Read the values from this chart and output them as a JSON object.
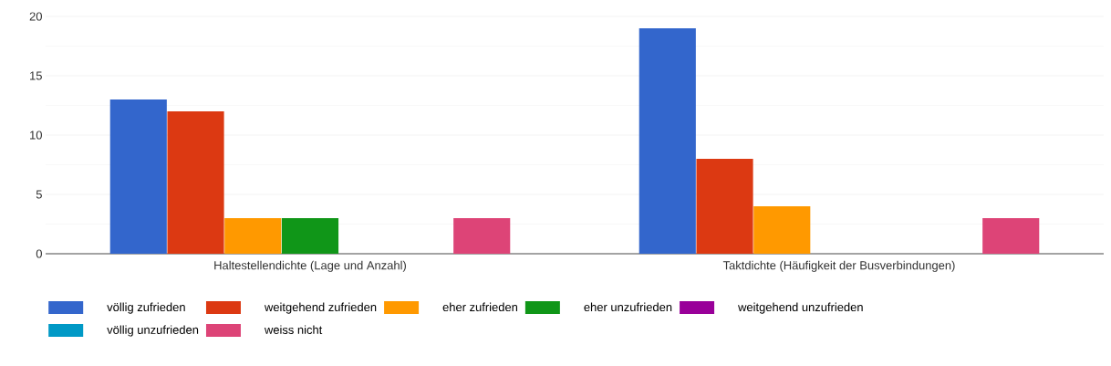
{
  "chart_data": {
    "type": "bar",
    "categories": [
      "Haltestellendichte (Lage und Anzahl)",
      "Taktdichte (Häufigkeit der Busverbindungen)"
    ],
    "series": [
      {
        "name": "völlig zufrieden",
        "color": "#3366cc",
        "values": [
          13,
          19
        ]
      },
      {
        "name": "weitgehend zufrieden",
        "color": "#dc3912",
        "values": [
          12,
          8
        ]
      },
      {
        "name": "eher zufrieden",
        "color": "#ff9900",
        "values": [
          3,
          4
        ]
      },
      {
        "name": "eher unzufrieden",
        "color": "#109618",
        "values": [
          3,
          0
        ]
      },
      {
        "name": "weitgehend unzufrieden",
        "color": "#990099",
        "values": [
          0,
          0
        ]
      },
      {
        "name": "völlig unzufrieden",
        "color": "#0099c6",
        "values": [
          0,
          0
        ]
      },
      {
        "name": "weiss nicht",
        "color": "#dd4477",
        "values": [
          3,
          3
        ]
      }
    ],
    "ylim": [
      0,
      20
    ],
    "yticks": [
      0,
      5,
      10,
      15,
      20
    ],
    "grid": "y",
    "legend": "bottom"
  }
}
